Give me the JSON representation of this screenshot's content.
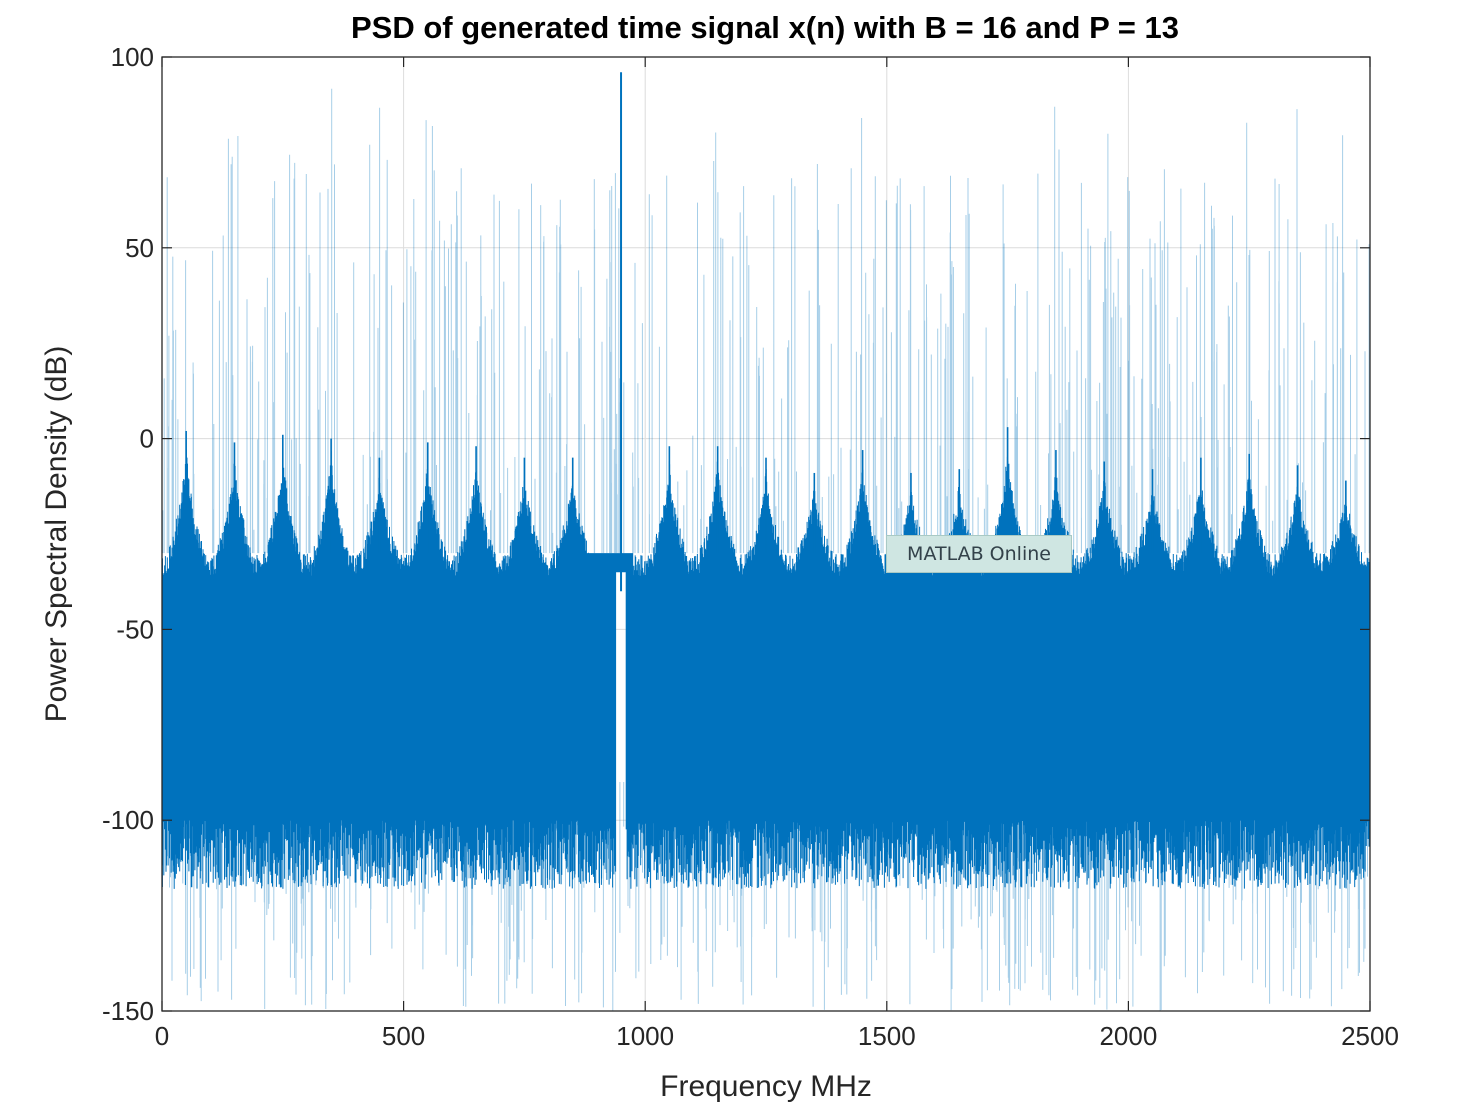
{
  "chart_data": {
    "type": "line",
    "title": "PSD of generated time signal x(n) with B = 16 and P = 13",
    "xlabel": "Frequency MHz",
    "ylabel": "Power Spectral Density (dB)",
    "xlim": [
      0,
      2500
    ],
    "ylim": [
      -150,
      100
    ],
    "xticks": [
      0,
      500,
      1000,
      1500,
      2000,
      2500
    ],
    "yticks": [
      100,
      50,
      0,
      -50,
      -100,
      -150
    ],
    "xtick_labels": [
      "0",
      "500",
      "1000",
      "1500",
      "2000",
      "2500"
    ],
    "ytick_labels": [
      "100",
      "50",
      "0",
      "-50",
      "-100",
      "-150"
    ],
    "grid": true,
    "line_color": "#0072BD",
    "series": [
      {
        "carrier": {
          "x": 950,
          "y": 96
        },
        "spur_peaks": [
          {
            "x": 50,
            "y": 2
          },
          {
            "x": 150,
            "y": -1
          },
          {
            "x": 250,
            "y": 1
          },
          {
            "x": 350,
            "y": 0
          },
          {
            "x": 450,
            "y": -5
          },
          {
            "x": 550,
            "y": -1
          },
          {
            "x": 650,
            "y": -2
          },
          {
            "x": 750,
            "y": -5
          },
          {
            "x": 850,
            "y": -5
          },
          {
            "x": 1050,
            "y": -2
          },
          {
            "x": 1150,
            "y": -2
          },
          {
            "x": 1250,
            "y": -5
          },
          {
            "x": 1350,
            "y": -9
          },
          {
            "x": 1450,
            "y": -3
          },
          {
            "x": 1550,
            "y": -9
          },
          {
            "x": 1650,
            "y": -8
          },
          {
            "x": 1750,
            "y": 3
          },
          {
            "x": 1850,
            "y": -3
          },
          {
            "x": 1950,
            "y": -6
          },
          {
            "x": 2050,
            "y": -8
          },
          {
            "x": 2150,
            "y": -5
          },
          {
            "x": 2250,
            "y": -4
          },
          {
            "x": 2350,
            "y": -7
          },
          {
            "x": 2450,
            "y": -11
          }
        ],
        "noise_floor_upper": -30,
        "noise_floor_lower": -100,
        "min_level": -150
      }
    ]
  },
  "overlay": {
    "tooltip_text": "MATLAB Online"
  }
}
